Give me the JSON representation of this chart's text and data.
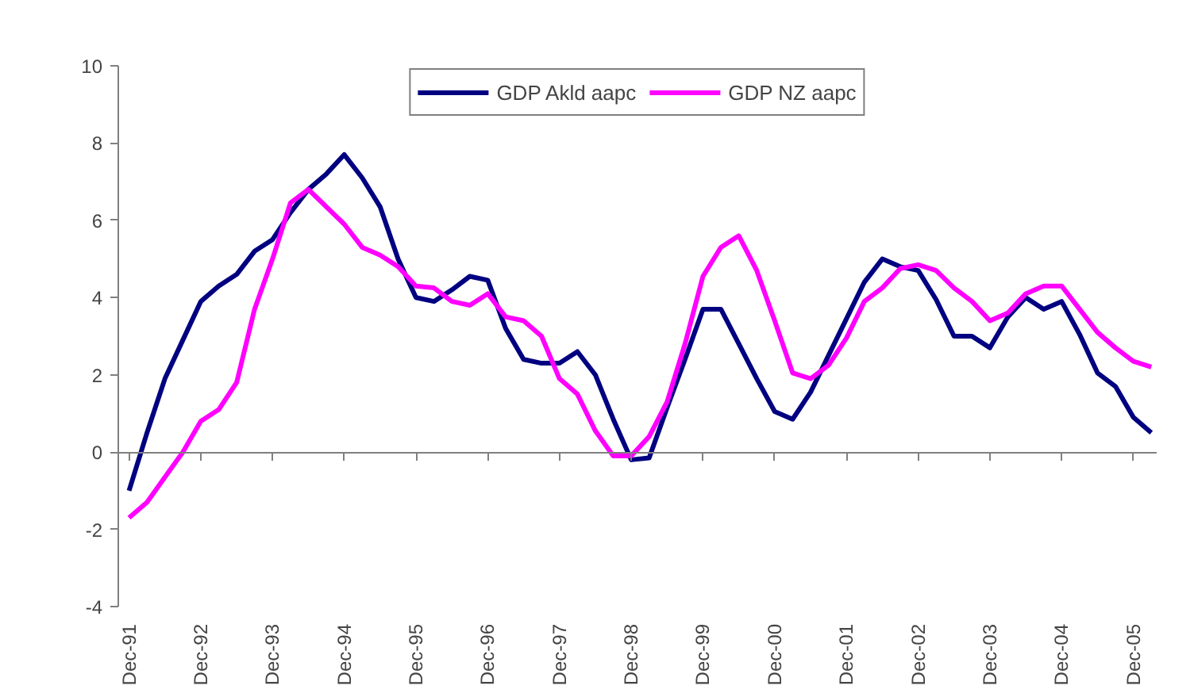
{
  "chart_data": {
    "type": "line",
    "categories": [
      "Dec-91",
      null,
      null,
      null,
      "Dec-92",
      null,
      null,
      null,
      "Dec-93",
      null,
      null,
      null,
      "Dec-94",
      null,
      null,
      null,
      "Dec-95",
      null,
      null,
      null,
      "Dec-96",
      null,
      null,
      null,
      "Dec-97",
      null,
      null,
      null,
      "Dec-98",
      null,
      null,
      null,
      "Dec-99",
      null,
      null,
      null,
      "Dec-00",
      null,
      null,
      null,
      "Dec-01",
      null,
      null,
      null,
      "Dec-02",
      null,
      null,
      null,
      "Dec-03",
      null,
      null,
      null,
      "Dec-04",
      null,
      null,
      null,
      "Dec-05",
      null
    ],
    "series": [
      {
        "name": "GDP Akld aapc",
        "color": "#000080",
        "values": [
          -1.0,
          0.5,
          1.9,
          2.9,
          3.9,
          4.3,
          4.6,
          5.2,
          5.5,
          6.2,
          6.8,
          7.2,
          7.7,
          7.1,
          6.35,
          5.0,
          4.0,
          3.9,
          4.2,
          4.55,
          4.45,
          3.2,
          2.4,
          2.3,
          2.3,
          2.6,
          2.0,
          0.85,
          -0.2,
          -0.15,
          1.15,
          2.4,
          3.7,
          3.7,
          2.8,
          1.9,
          1.05,
          0.85,
          1.55,
          2.5,
          3.45,
          4.4,
          5.0,
          4.8,
          4.7,
          3.95,
          3.0,
          3.0,
          2.7,
          3.5,
          4.0,
          3.7,
          3.9,
          3.05,
          2.05,
          1.7,
          0.9,
          0.5
        ]
      },
      {
        "name": "GDP NZ aapc",
        "color": "#ff00ff",
        "values": [
          -1.7,
          -1.3,
          -0.65,
          0.0,
          0.8,
          1.1,
          1.8,
          3.7,
          5.0,
          6.45,
          6.8,
          6.35,
          5.9,
          5.3,
          5.1,
          4.8,
          4.3,
          4.25,
          3.9,
          3.8,
          4.1,
          3.5,
          3.4,
          3.0,
          1.9,
          1.5,
          0.55,
          -0.1,
          -0.1,
          0.4,
          1.3,
          2.8,
          4.55,
          5.3,
          5.6,
          4.7,
          3.4,
          2.05,
          1.9,
          2.25,
          2.95,
          3.9,
          4.25,
          4.75,
          4.85,
          4.7,
          4.25,
          3.9,
          3.4,
          3.6,
          4.1,
          4.3,
          4.3,
          3.7,
          3.1,
          2.7,
          2.35,
          2.2
        ]
      }
    ],
    "ylim": [
      -4,
      10
    ],
    "yticks": [
      -4,
      -2,
      0,
      2,
      4,
      6,
      8,
      10
    ],
    "legend": "top",
    "line_style": "solid"
  }
}
